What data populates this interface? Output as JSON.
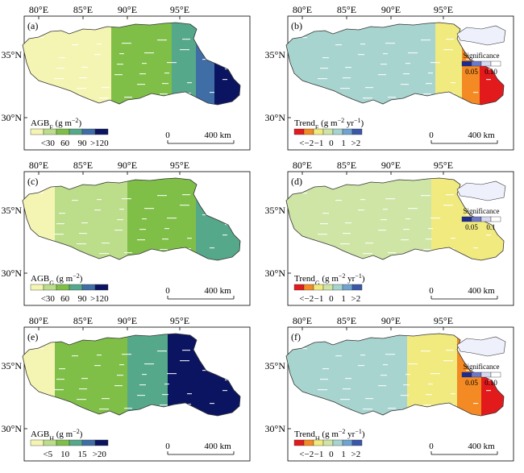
{
  "colors": {
    "agb": [
      "#f4f5b3",
      "#bcdd8a",
      "#7fbf47",
      "#55a889",
      "#3f6ea6",
      "#0b1461"
    ],
    "trend": [
      "#e31a1c",
      "#f48a24",
      "#f1ea7f",
      "#cfe5a6",
      "#a8d4cf",
      "#6fa3d0",
      "#3b58a8"
    ],
    "sig": [
      "#1c2a93",
      "#6e78c8",
      "#d6d9f2",
      "#ffffff"
    ]
  },
  "panels": [
    {
      "id": "a",
      "label": "(a)",
      "top_axis": [
        "80°E",
        "85°E",
        "90°E",
        "95°E"
      ],
      "left_axis": [
        "35°N",
        "30°N"
      ],
      "title_main": "AGB",
      "title_sub": "F",
      "title_tail": " (g m",
      "title_sup": "−2",
      "title_end": ")",
      "legend_type": "agb",
      "legend_labels": [
        "<30",
        "60",
        "90",
        ">120"
      ],
      "scalebar": {
        "start": "0",
        "end": "400 km"
      }
    },
    {
      "id": "b",
      "label": "(b)",
      "top_axis": [
        "80°E",
        "85°E",
        "90°E",
        "95°E"
      ],
      "left_axis": [
        "35°N",
        "30°N"
      ],
      "title_main": "Trend",
      "title_sub": "F",
      "title_tail": " (g m",
      "title_sup": "−2",
      "title_mid": " yr",
      "title_sup2": "−1",
      "title_end": ")",
      "legend_type": "trend",
      "legend_labels": [
        "<−2",
        "−1",
        "0",
        "1",
        ">2"
      ],
      "scalebar": {
        "start": "0",
        "end": "400 km"
      },
      "inset": {
        "title": "Significance",
        "labels": [
          "0.05",
          "0.10"
        ]
      }
    },
    {
      "id": "c",
      "label": "(c)",
      "top_axis": [
        "80°E",
        "85°E",
        "90°E",
        "95°E"
      ],
      "left_axis": [
        "35°N",
        "30°N"
      ],
      "title_main": "AGB",
      "title_sub": "G",
      "title_tail": " (g m",
      "title_sup": "−2",
      "title_end": ")",
      "legend_type": "agb",
      "legend_labels": [
        "<30",
        "60",
        "90",
        ">120"
      ],
      "scalebar": {
        "start": "0",
        "end": "400 km"
      }
    },
    {
      "id": "d",
      "label": "(d)",
      "top_axis": [
        "80°E",
        "85°E",
        "90°E",
        "95°E"
      ],
      "left_axis": [
        "35°N",
        "30°N"
      ],
      "title_main": "Trend",
      "title_sub": "G",
      "title_tail": " (g m",
      "title_sup": "−2",
      "title_mid": " yr",
      "title_sup2": "−1",
      "title_end": ")",
      "legend_type": "trend",
      "legend_labels": [
        "<−2",
        "−1",
        "0",
        "1",
        ">2"
      ],
      "scalebar": {
        "start": "0",
        "end": "400 km"
      },
      "inset": {
        "title": "Significance",
        "labels": [
          "0.05",
          "0.1"
        ]
      }
    },
    {
      "id": "e",
      "label": "(e)",
      "top_axis": [
        "80°E",
        "85°E",
        "90°E",
        "95°E"
      ],
      "left_axis": [
        "35°N",
        "30°N"
      ],
      "title_main": "AGB",
      "title_sub": "H",
      "title_tail": " (g m",
      "title_sup": "−2",
      "title_end": ")",
      "legend_type": "agb",
      "legend_labels": [
        "<5",
        "10",
        "15",
        ">20"
      ],
      "scalebar": {
        "start": "0",
        "end": "400 km"
      }
    },
    {
      "id": "f",
      "label": "(f)",
      "top_axis": [
        "80°E",
        "85°E",
        "90°E",
        "95°E"
      ],
      "left_axis": [
        "35°N",
        "30°N"
      ],
      "title_main": "Trend",
      "title_sub": "H",
      "title_tail": " (g m",
      "title_sup": "−2",
      "title_mid": " yr",
      "title_sup2": "−1",
      "title_end": ")",
      "legend_type": "trend",
      "legend_labels": [
        "<−2",
        "−1",
        "0",
        "1",
        ">2"
      ],
      "scalebar": {
        "start": "0",
        "end": "400 km"
      },
      "inset": {
        "title": "Significance",
        "labels": [
          "0.05",
          "0.10"
        ]
      }
    }
  ]
}
